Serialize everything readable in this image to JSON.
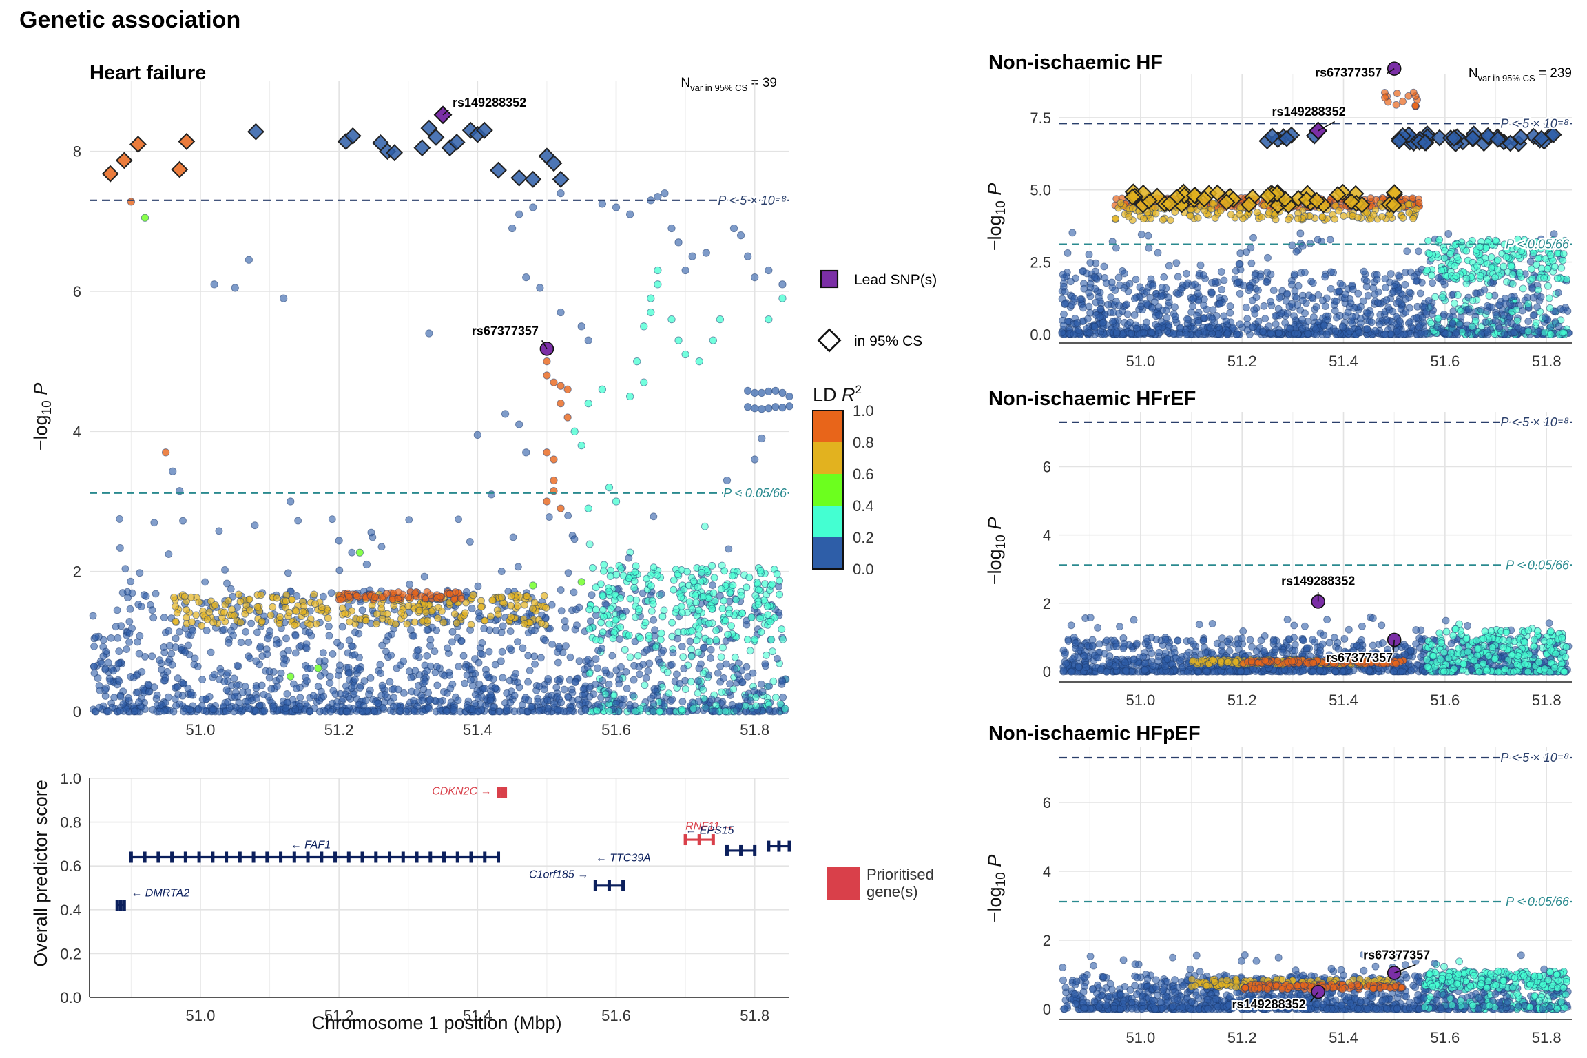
{
  "figure": {
    "title": "Genetic association",
    "threshold_labels": {
      "gw": "P < 5 × 10⁻⁸",
      "bonf": "P < 0.05/66"
    },
    "colors": {
      "threshold_gw": "#2a3f6b",
      "threshold_bonf": "#2a8a8f",
      "lead": "#7b2fa6",
      "ld_0_2": "#2e5ea8",
      "ld_2_4": "#44ffd2",
      "ld_4_6": "#6cff1e",
      "ld_6_8": "#e2b21f",
      "ld_8_10": "#e8651a",
      "gene": "#0b1f5c",
      "prioritised": "#d9404a"
    }
  },
  "legend": {
    "lead_label": "Lead SNP(s)",
    "cs_label": "in 95% CS",
    "ld_title": "LD R²",
    "ld_ticks": [
      "1.0",
      "0.8",
      "0.6",
      "0.4",
      "0.2",
      "0.0"
    ],
    "ld_colors": [
      "#e8651a",
      "#e2b21f",
      "#6cff1e",
      "#44ffd2",
      "#2e5ea8"
    ],
    "prioritised_label": "Prioritised gene(s)"
  },
  "chart_data": [
    {
      "type": "scatter",
      "title": "Heart failure",
      "xlabel": "Chromosome 1 position (Mbp)",
      "ylabel": "−log10 P",
      "xlim": [
        50.84,
        51.85
      ],
      "ylim": [
        0,
        9
      ],
      "xticks": [
        "51.0",
        "51.2",
        "51.4",
        "51.6",
        "51.8"
      ],
      "yticks": [
        "0",
        "2",
        "4",
        "6",
        "8"
      ],
      "credible_set_note": "Nvar in 95% CS = 39",
      "lead_snps": [
        {
          "label": "rs149288352",
          "x": 51.35,
          "y": 8.52
        },
        {
          "label": "rs67377357",
          "x": 51.5,
          "y": 5.18
        }
      ],
      "credible_set_points": [
        [
          50.87,
          7.68
        ],
        [
          50.89,
          7.87
        ],
        [
          50.91,
          8.1
        ],
        [
          50.97,
          7.74
        ],
        [
          50.98,
          8.14
        ],
        [
          51.08,
          8.28
        ],
        [
          51.21,
          8.14
        ],
        [
          51.22,
          8.22
        ],
        [
          51.26,
          8.12
        ],
        [
          51.27,
          8.0
        ],
        [
          51.28,
          7.98
        ],
        [
          51.32,
          8.05
        ],
        [
          51.33,
          8.33
        ],
        [
          51.34,
          8.2
        ],
        [
          51.36,
          8.05
        ],
        [
          51.37,
          8.13
        ],
        [
          51.39,
          8.3
        ],
        [
          51.4,
          8.24
        ],
        [
          51.41,
          8.3
        ],
        [
          51.43,
          7.73
        ],
        [
          51.46,
          7.62
        ],
        [
          51.48,
          7.6
        ],
        [
          51.5,
          7.93
        ],
        [
          51.51,
          7.83
        ],
        [
          51.52,
          7.6
        ]
      ],
      "ld_points": [
        [
          50.9,
          7.28,
          0.8
        ],
        [
          50.92,
          7.05,
          0.4
        ],
        [
          51.5,
          5.0,
          0.9
        ],
        [
          51.5,
          4.8,
          0.9
        ],
        [
          51.51,
          4.7,
          0.9
        ],
        [
          51.52,
          4.65,
          0.9
        ],
        [
          51.53,
          4.6,
          0.9
        ],
        [
          51.52,
          4.4,
          0.9
        ],
        [
          51.53,
          4.2,
          0.9
        ],
        [
          51.5,
          3.7,
          0.9
        ],
        [
          51.51,
          3.6,
          0.9
        ],
        [
          51.51,
          3.3,
          0.9
        ],
        [
          51.5,
          3.0,
          0.9
        ],
        [
          51.52,
          2.9,
          0.9
        ],
        [
          51.51,
          3.15,
          0.9
        ],
        [
          50.95,
          3.7,
          0.8
        ],
        [
          51.23,
          2.27,
          0.4
        ],
        [
          51.13,
          0.5,
          0.4
        ],
        [
          51.17,
          0.62,
          0.4
        ],
        [
          51.48,
          1.8,
          0.4
        ],
        [
          51.55,
          1.85,
          0.4
        ]
      ],
      "blue_high": [
        [
          51.02,
          6.1
        ],
        [
          51.05,
          6.05
        ],
        [
          51.07,
          6.45
        ],
        [
          51.12,
          5.9
        ],
        [
          51.33,
          5.4
        ],
        [
          51.44,
          4.25
        ],
        [
          51.46,
          4.1
        ],
        [
          51.47,
          3.7
        ],
        [
          51.49,
          6.05
        ],
        [
          51.52,
          5.7
        ],
        [
          51.55,
          5.5
        ],
        [
          51.56,
          5.3
        ],
        [
          51.58,
          7.25
        ],
        [
          51.6,
          7.2
        ],
        [
          51.62,
          7.1
        ],
        [
          51.65,
          7.3
        ],
        [
          51.66,
          7.35
        ],
        [
          51.67,
          7.4
        ],
        [
          51.68,
          6.9
        ],
        [
          51.69,
          6.7
        ],
        [
          51.7,
          6.3
        ],
        [
          51.71,
          6.5
        ],
        [
          51.73,
          6.55
        ],
        [
          51.77,
          6.9
        ],
        [
          51.78,
          6.8
        ],
        [
          51.79,
          6.5
        ],
        [
          51.8,
          6.2
        ],
        [
          51.82,
          6.3
        ],
        [
          51.84,
          6.1
        ],
        [
          50.96,
          3.43
        ],
        [
          50.97,
          3.15
        ],
        [
          51.13,
          3.0
        ],
        [
          51.2,
          2.44
        ],
        [
          51.24,
          2.1
        ],
        [
          51.4,
          3.95
        ],
        [
          51.42,
          3.1
        ],
        [
          51.52,
          7.4
        ],
        [
          51.48,
          7.2
        ],
        [
          51.46,
          7.1
        ],
        [
          51.45,
          6.9
        ],
        [
          51.47,
          6.2
        ],
        [
          51.76,
          3.3
        ],
        [
          51.8,
          3.6
        ],
        [
          51.81,
          3.9
        ]
      ],
      "ld_teal_high": [
        [
          51.66,
          6.3
        ],
        [
          51.66,
          6.1
        ],
        [
          51.65,
          5.9
        ],
        [
          51.65,
          5.7
        ],
        [
          51.68,
          5.6
        ],
        [
          51.69,
          5.3
        ],
        [
          51.7,
          5.1
        ],
        [
          51.72,
          5.0
        ],
        [
          51.74,
          5.3
        ],
        [
          51.75,
          5.6
        ],
        [
          51.64,
          5.5
        ],
        [
          51.63,
          5.0
        ],
        [
          51.64,
          4.7
        ],
        [
          51.62,
          4.5
        ],
        [
          51.58,
          4.6
        ],
        [
          51.56,
          4.4
        ],
        [
          51.54,
          4.0
        ],
        [
          51.55,
          3.8
        ],
        [
          51.59,
          3.2
        ],
        [
          51.6,
          3.0
        ],
        [
          51.56,
          2.9
        ],
        [
          51.84,
          5.9
        ],
        [
          51.82,
          5.6
        ]
      ],
      "rail_points": [
        [
          51.79,
          4.58
        ],
        [
          51.8,
          4.55
        ],
        [
          51.81,
          4.55
        ],
        [
          51.82,
          4.57
        ],
        [
          51.83,
          4.58
        ],
        [
          51.84,
          4.55
        ],
        [
          51.85,
          4.5
        ],
        [
          51.79,
          4.35
        ],
        [
          51.8,
          4.33
        ],
        [
          51.81,
          4.32
        ],
        [
          51.82,
          4.33
        ],
        [
          51.83,
          4.35
        ],
        [
          51.84,
          4.34
        ],
        [
          51.85,
          4.36
        ]
      ],
      "band_seed": 11
    },
    {
      "type": "gene_track",
      "ylabel": "Overall predictor score",
      "xlabel": "Chromosome 1 position (Mbp)",
      "xlim": [
        50.84,
        51.85
      ],
      "ylim": [
        0,
        1
      ],
      "yticks": [
        "0.0",
        "0.2",
        "0.4",
        "0.6",
        "0.8",
        "1.0"
      ],
      "genes": [
        {
          "name": "DMRTA2",
          "label": "← DMRTA2",
          "start": 50.88,
          "end": 50.89,
          "score": 0.42,
          "prioritised": false,
          "label_x": 50.9,
          "label_y": 0.48
        },
        {
          "name": "FAF1",
          "label": "← FAF1",
          "start": 50.9,
          "end": 51.43,
          "score": 0.64,
          "prioritised": false,
          "label_x": 51.13,
          "label_y": 0.7
        },
        {
          "name": "CDKN2C",
          "label": "CDKN2C →",
          "start": 51.43,
          "end": 51.44,
          "score": 0.935,
          "prioritised": true,
          "label_x": 51.42,
          "label_y": 0.945
        },
        {
          "name": "C1orf185",
          "label": "C1orf185 →",
          "start": 51.57,
          "end": 51.61,
          "score": 0.51,
          "prioritised": false,
          "label_x": 51.56,
          "label_y": 0.565
        },
        {
          "name": "RNF11",
          "label": "RNF11 →",
          "start": 51.7,
          "end": 51.74,
          "score": 0.72,
          "prioritised": true,
          "label_x": 51.7,
          "label_y": 0.785
        },
        {
          "name": "TTC39A",
          "label": "← TTC39A",
          "start": 51.76,
          "end": 51.8,
          "score": 0.67,
          "prioritised": false,
          "label_x": 51.65,
          "label_y": 0.64
        },
        {
          "name": "EPS15",
          "label": "← EPS15",
          "start": 51.82,
          "end": 51.86,
          "score": 0.69,
          "prioritised": false,
          "label_x": 51.77,
          "label_y": 0.765
        }
      ]
    },
    {
      "type": "scatter",
      "title": "Non-ischaemic HF",
      "ylabel": "−log10 P",
      "xlim": [
        50.84,
        51.85
      ],
      "ylim": [
        -0.3,
        9.0
      ],
      "xticks": [
        "51.0",
        "51.2",
        "51.4",
        "51.6",
        "51.8"
      ],
      "yticks": [
        "0.0",
        "2.5",
        "5.0",
        "7.5"
      ],
      "credible_set_note": "Nvar in 95% CS = 239",
      "lead_snps": [
        {
          "label": "rs67377357",
          "x": 51.5,
          "y": 9.2
        },
        {
          "label": "rs149288352",
          "x": 51.35,
          "y": 7.05
        }
      ],
      "band_seed": 23
    },
    {
      "type": "scatter",
      "title": "Non-ischaemic HFrEF",
      "ylabel": "−log10 P",
      "xlim": [
        50.84,
        51.85
      ],
      "ylim": [
        -0.3,
        7.6
      ],
      "xticks": [
        "51.0",
        "51.2",
        "51.4",
        "51.6",
        "51.8"
      ],
      "yticks": [
        "0",
        "2",
        "4",
        "6"
      ],
      "lead_snps": [
        {
          "label": "rs149288352",
          "x": 51.35,
          "y": 2.05
        },
        {
          "label": "rs67377357",
          "x": 51.5,
          "y": 0.93
        }
      ],
      "band_seed": 37
    },
    {
      "type": "scatter",
      "title": "Non-ischaemic HFpEF",
      "ylabel": "−log10 P",
      "xlim": [
        50.84,
        51.85
      ],
      "ylim": [
        -0.3,
        7.6
      ],
      "xticks": [
        "51.0",
        "51.2",
        "51.4",
        "51.6",
        "51.8"
      ],
      "yticks": [
        "0",
        "2",
        "4",
        "6"
      ],
      "lead_snps": [
        {
          "label": "rs67377357",
          "x": 51.5,
          "y": 1.05
        },
        {
          "label": "rs149288352",
          "x": 51.35,
          "y": 0.5
        }
      ],
      "band_seed": 53
    }
  ]
}
